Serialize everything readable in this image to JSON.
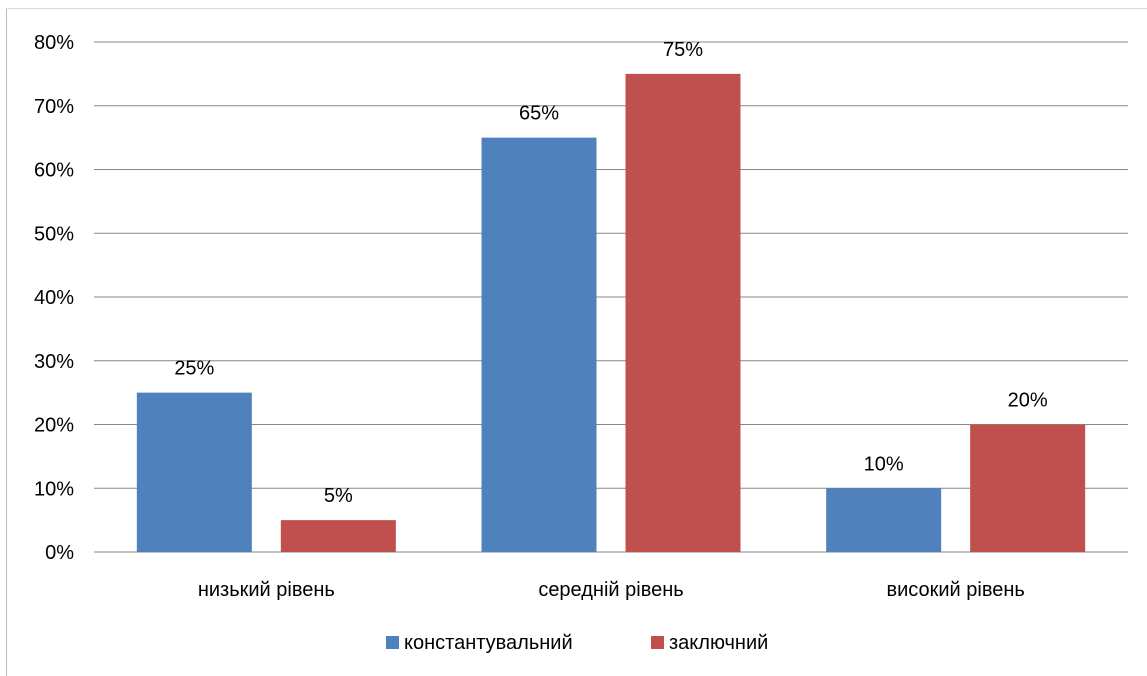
{
  "chart_data": {
    "type": "bar",
    "categories": [
      "низький рівень",
      "середній рівень",
      "високий рівень"
    ],
    "series": [
      {
        "name": "константувальний",
        "values": [
          25,
          65,
          10
        ],
        "color": "#4F81BD",
        "labels": [
          "25%",
          "65%",
          "10%"
        ]
      },
      {
        "name": "заключний",
        "values": [
          5,
          75,
          20
        ],
        "color": "#C0504D",
        "labels": [
          "5%",
          "75%",
          "20%"
        ]
      }
    ],
    "ylim": [
      0,
      80
    ],
    "y_ticks": [
      "0%",
      "10%",
      "20%",
      "30%",
      "40%",
      "50%",
      "60%",
      "70%",
      "80%"
    ],
    "grid": true,
    "legend": "bottom",
    "title": "",
    "xlabel": "",
    "ylabel": ""
  }
}
